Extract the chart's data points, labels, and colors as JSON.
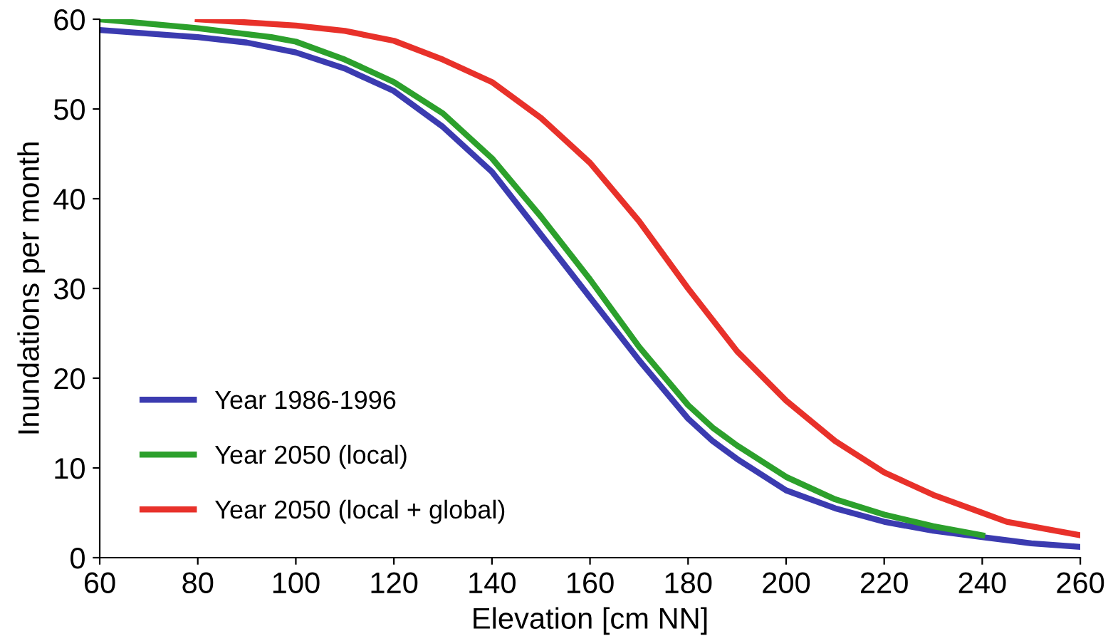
{
  "chart_data": {
    "type": "line",
    "xlabel": "Elevation [cm NN]",
    "ylabel": "Inundations per month",
    "xlim": [
      60,
      260
    ],
    "xticks": [
      60,
      80,
      100,
      120,
      140,
      160,
      180,
      200,
      220,
      240,
      260
    ],
    "ylim": [
      0,
      60
    ],
    "yticks": [
      0,
      10,
      20,
      30,
      40,
      50,
      60
    ],
    "grid": false,
    "legend": "bottom left",
    "marker": "none",
    "line_style": "solid",
    "series": [
      {
        "name": "Year 1986-1996",
        "color": "#3b3bb0",
        "x": [
          60,
          80,
          90,
          100,
          110,
          120,
          130,
          140,
          150,
          160,
          170,
          180,
          185,
          190,
          200,
          210,
          220,
          230,
          240,
          250,
          260
        ],
        "values": [
          58.8,
          58,
          57.4,
          56.3,
          54.5,
          52,
          48,
          43,
          36,
          29,
          22,
          15.5,
          13,
          11,
          7.5,
          5.5,
          4,
          3,
          2.3,
          1.6,
          1.2
        ]
      },
      {
        "name": "Year 2050 (local)",
        "color": "#2ca02c",
        "x": [
          60,
          80,
          95,
          100,
          110,
          120,
          130,
          140,
          150,
          160,
          170,
          180,
          185,
          190,
          200,
          210,
          220,
          230,
          240
        ],
        "values": [
          60,
          59,
          58,
          57.5,
          55.5,
          53,
          49.5,
          44.5,
          38,
          31,
          23.5,
          17,
          14.5,
          12.5,
          9,
          6.5,
          4.8,
          3.5,
          2.5
        ]
      },
      {
        "name": "Year 2050 (local + global)",
        "color": "#e8312a",
        "x": [
          80,
          100,
          110,
          120,
          130,
          140,
          150,
          160,
          170,
          180,
          190,
          200,
          210,
          220,
          230,
          240,
          245,
          260
        ],
        "values": [
          60,
          59.3,
          58.7,
          57.6,
          55.5,
          53,
          49,
          44,
          37.5,
          30,
          23,
          17.5,
          13,
          9.5,
          7,
          5,
          4,
          2.5
        ]
      }
    ]
  }
}
